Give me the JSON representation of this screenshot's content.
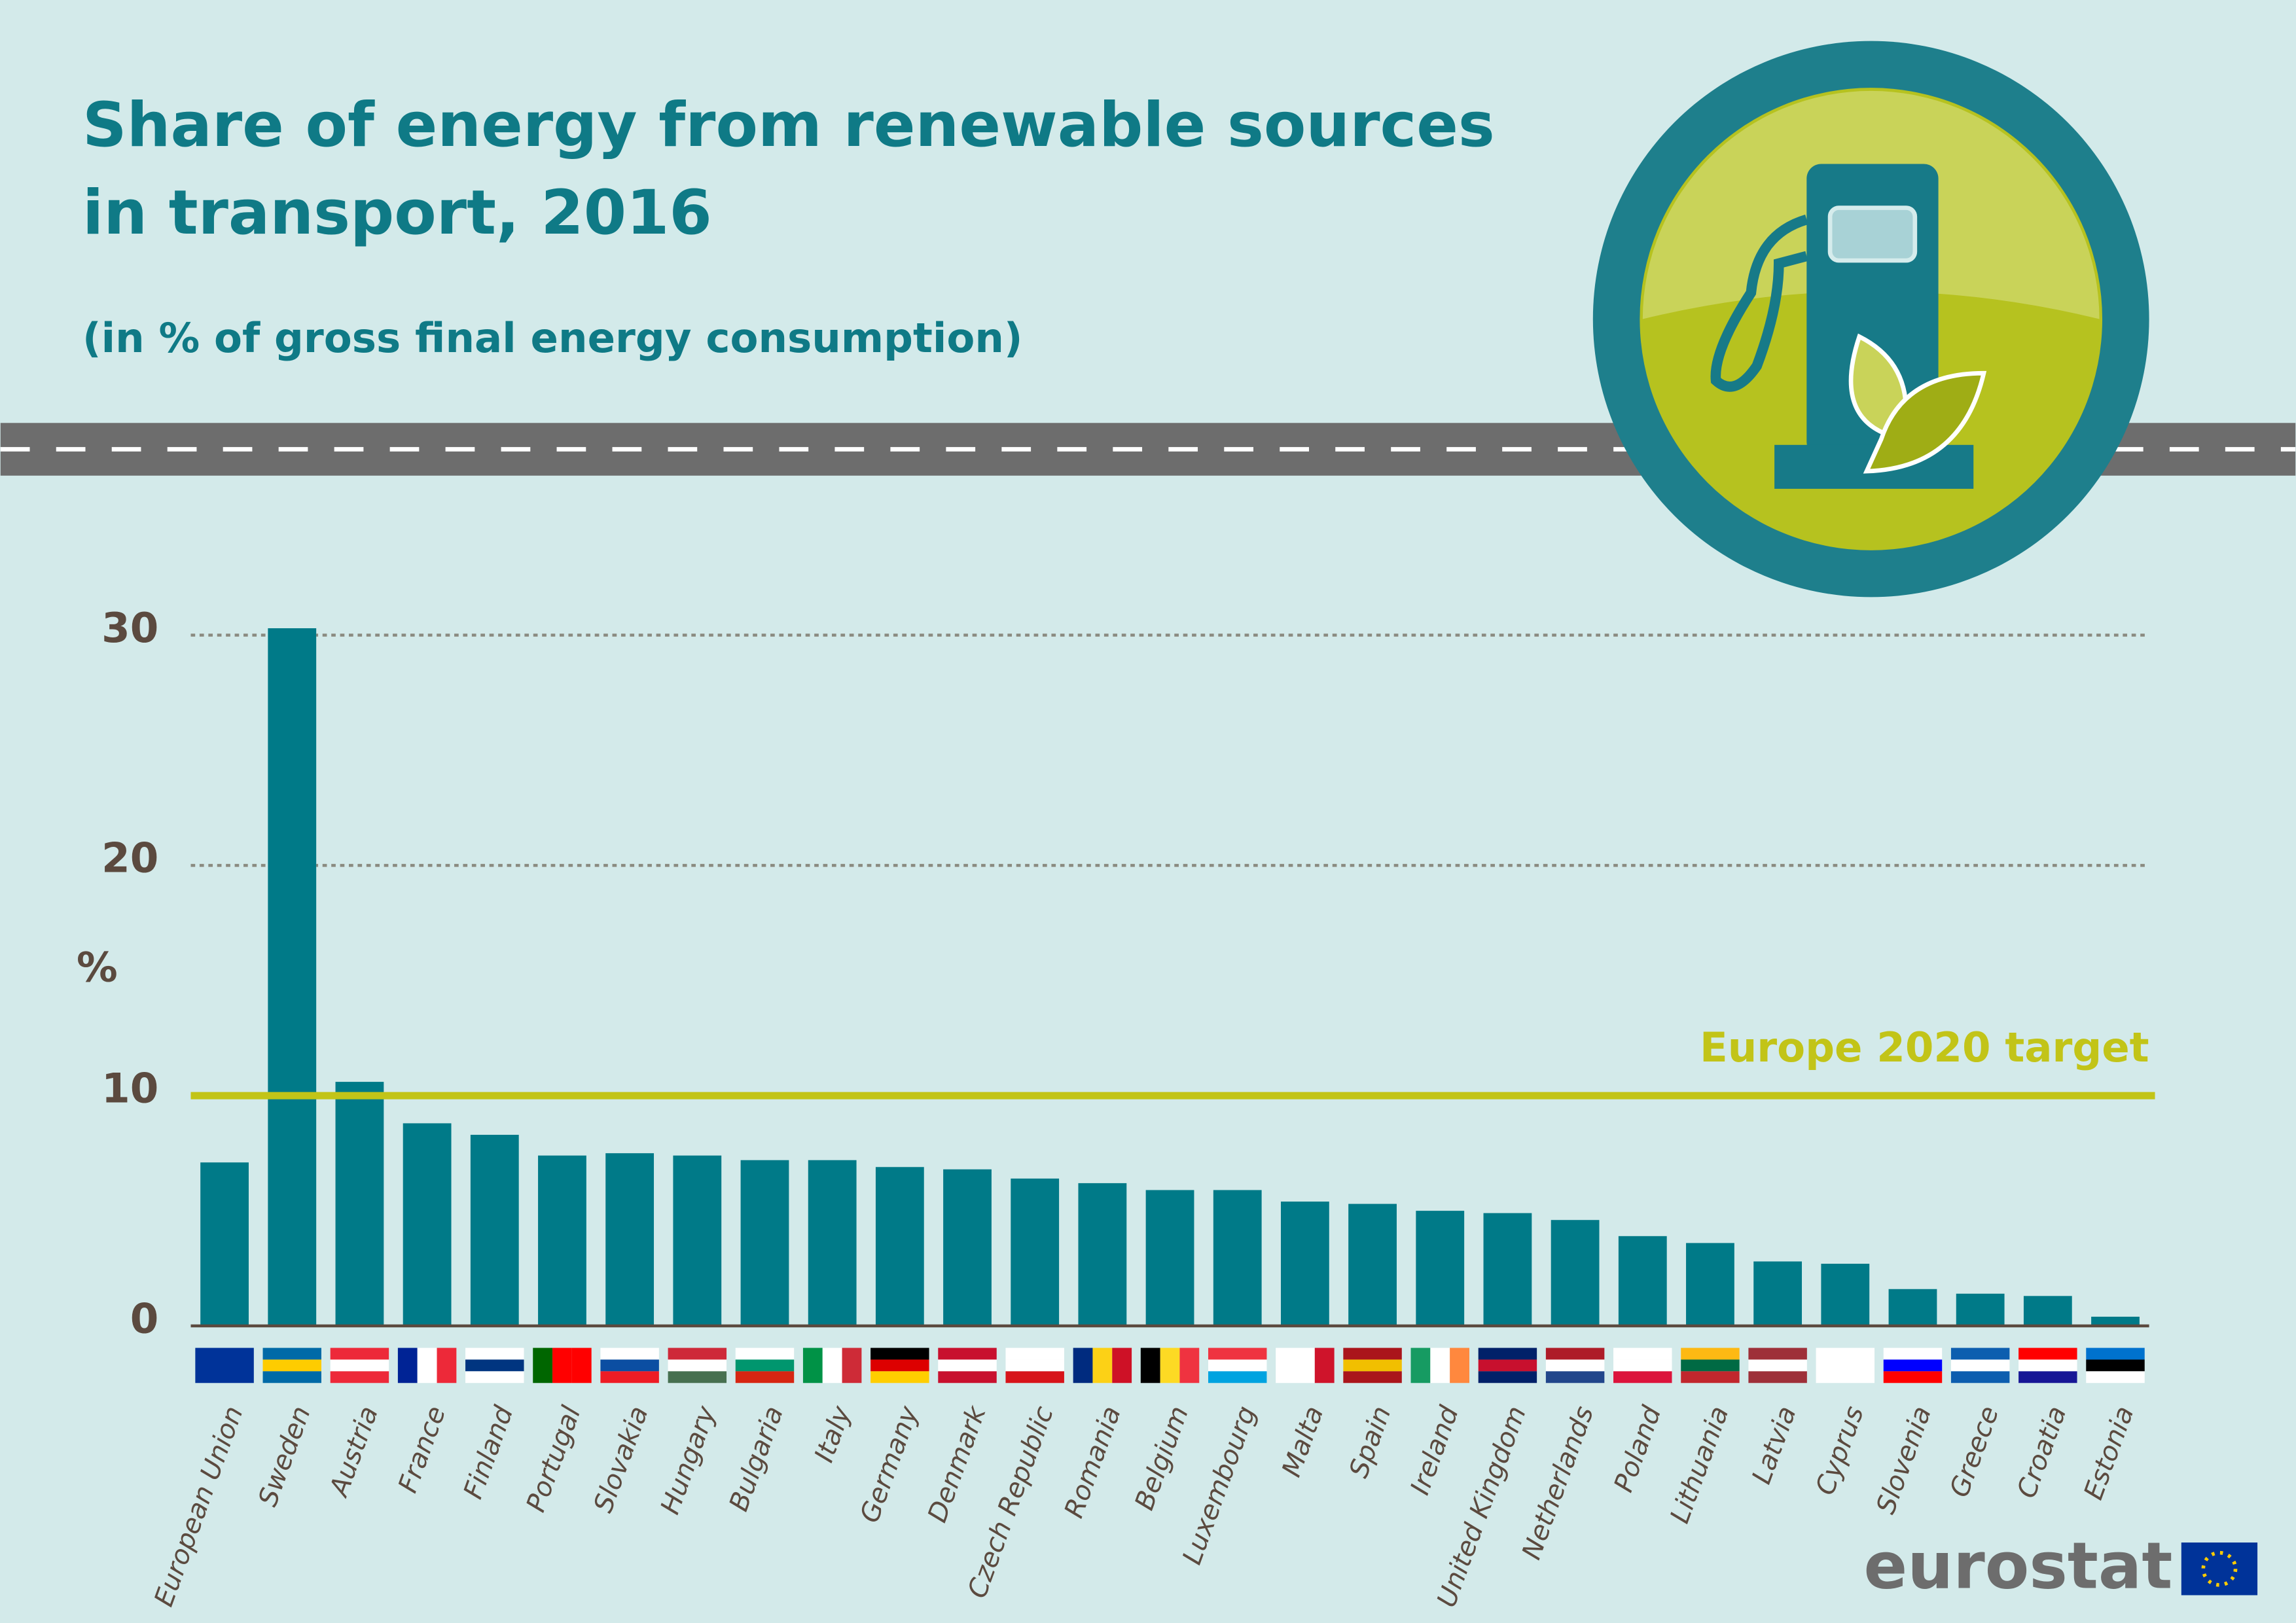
{
  "chart_data": {
    "type": "bar",
    "title": "Share of energy from renewable sources in transport, 2016",
    "subtitle": "(in % of gross final energy consumption)",
    "y_label": "%",
    "categories": [
      "European Union",
      "Sweden",
      "Austria",
      "France",
      "Finland",
      "Portugal",
      "Slovakia",
      "Hungary",
      "Bulgaria",
      "Italy",
      "Germany",
      "Denmark",
      "Czech Republic",
      "Romania",
      "Belgium",
      "Luxembourg",
      "Malta",
      "Spain",
      "Ireland",
      "United Kingdom",
      "Netherlands",
      "Poland",
      "Lithuania",
      "Latvia",
      "Cyprus",
      "Slovenia",
      "Greece",
      "Croatia",
      "Estonia"
    ],
    "values": [
      7.1,
      30.3,
      10.6,
      8.8,
      8.3,
      7.4,
      7.5,
      7.4,
      7.2,
      7.2,
      6.9,
      6.8,
      6.4,
      6.2,
      5.9,
      5.9,
      5.4,
      5.3,
      5.0,
      4.9,
      4.6,
      3.9,
      3.6,
      2.8,
      2.7,
      1.6,
      1.4,
      1.3,
      0.4
    ],
    "color": "#007a88",
    "ylim": [
      0,
      30
    ],
    "yticks": [
      0,
      10,
      20,
      30
    ],
    "grid": true,
    "target": {
      "value": 10,
      "label": "Europe 2020 target",
      "color": "#c2c418"
    },
    "source": "eurostat"
  }
}
